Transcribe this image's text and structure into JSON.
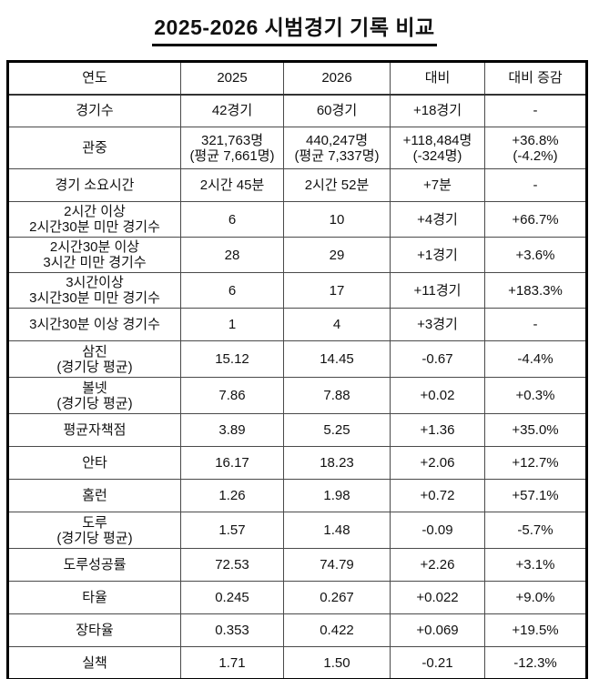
{
  "title": "2025-2026 시범경기 기록 비교",
  "table": {
    "columns": [
      "연도",
      "2025",
      "2026",
      "대비",
      "대비 증감"
    ],
    "rows": [
      {
        "label": "경기수",
        "y2025": "42경기",
        "y2026": "60경기",
        "diff": "+18경기",
        "pct": "-"
      },
      {
        "label": "관중",
        "y2025": "321,763명\n(평균 7,661명)",
        "y2026": "440,247명\n(평균 7,337명)",
        "diff": "+118,484명\n(-324명)",
        "pct": "+36.8%\n(-4.2%)"
      },
      {
        "label": "경기 소요시간",
        "y2025": "2시간 45분",
        "y2026": "2시간 52분",
        "diff": "+7분",
        "pct": "-"
      },
      {
        "label": "2시간 이상\n2시간30분 미만 경기수",
        "y2025": "6",
        "y2026": "10",
        "diff": "+4경기",
        "pct": "+66.7%"
      },
      {
        "label": "2시간30분 이상\n3시간 미만 경기수",
        "y2025": "28",
        "y2026": "29",
        "diff": "+1경기",
        "pct": "+3.6%"
      },
      {
        "label": "3시간이상\n3시간30분 미만 경기수",
        "y2025": "6",
        "y2026": "17",
        "diff": "+11경기",
        "pct": "+183.3%"
      },
      {
        "label": "3시간30분 이상 경기수",
        "y2025": "1",
        "y2026": "4",
        "diff": "+3경기",
        "pct": "-"
      },
      {
        "label": "삼진\n(경기당 평균)",
        "y2025": "15.12",
        "y2026": "14.45",
        "diff": "-0.67",
        "pct": "-4.4%"
      },
      {
        "label": "볼넷\n(경기당 평균)",
        "y2025": "7.86",
        "y2026": "7.88",
        "diff": "+0.02",
        "pct": "+0.3%"
      },
      {
        "label": "평균자책점",
        "y2025": "3.89",
        "y2026": "5.25",
        "diff": "+1.36",
        "pct": "+35.0%"
      },
      {
        "label": "안타",
        "y2025": "16.17",
        "y2026": "18.23",
        "diff": "+2.06",
        "pct": "+12.7%"
      },
      {
        "label": "홈런",
        "y2025": "1.26",
        "y2026": "1.98",
        "diff": "+0.72",
        "pct": "+57.1%"
      },
      {
        "label": "도루\n(경기당 평균)",
        "y2025": "1.57",
        "y2026": "1.48",
        "diff": "-0.09",
        "pct": "-5.7%"
      },
      {
        "label": "도루성공률",
        "y2025": "72.53",
        "y2026": "74.79",
        "diff": "+2.26",
        "pct": "+3.1%"
      },
      {
        "label": "타율",
        "y2025": "0.245",
        "y2026": "0.267",
        "diff": "+0.022",
        "pct": "+9.0%"
      },
      {
        "label": "장타율",
        "y2025": "0.353",
        "y2026": "0.422",
        "diff": "+0.069",
        "pct": "+19.5%"
      },
      {
        "label": "실책",
        "y2025": "1.71",
        "y2026": "1.50",
        "diff": "-0.21",
        "pct": "-12.3%"
      }
    ]
  },
  "colors": {
    "background": "#ffffff",
    "text": "#111111",
    "outer_border": "#000000",
    "inner_border": "#4a4a4a"
  }
}
